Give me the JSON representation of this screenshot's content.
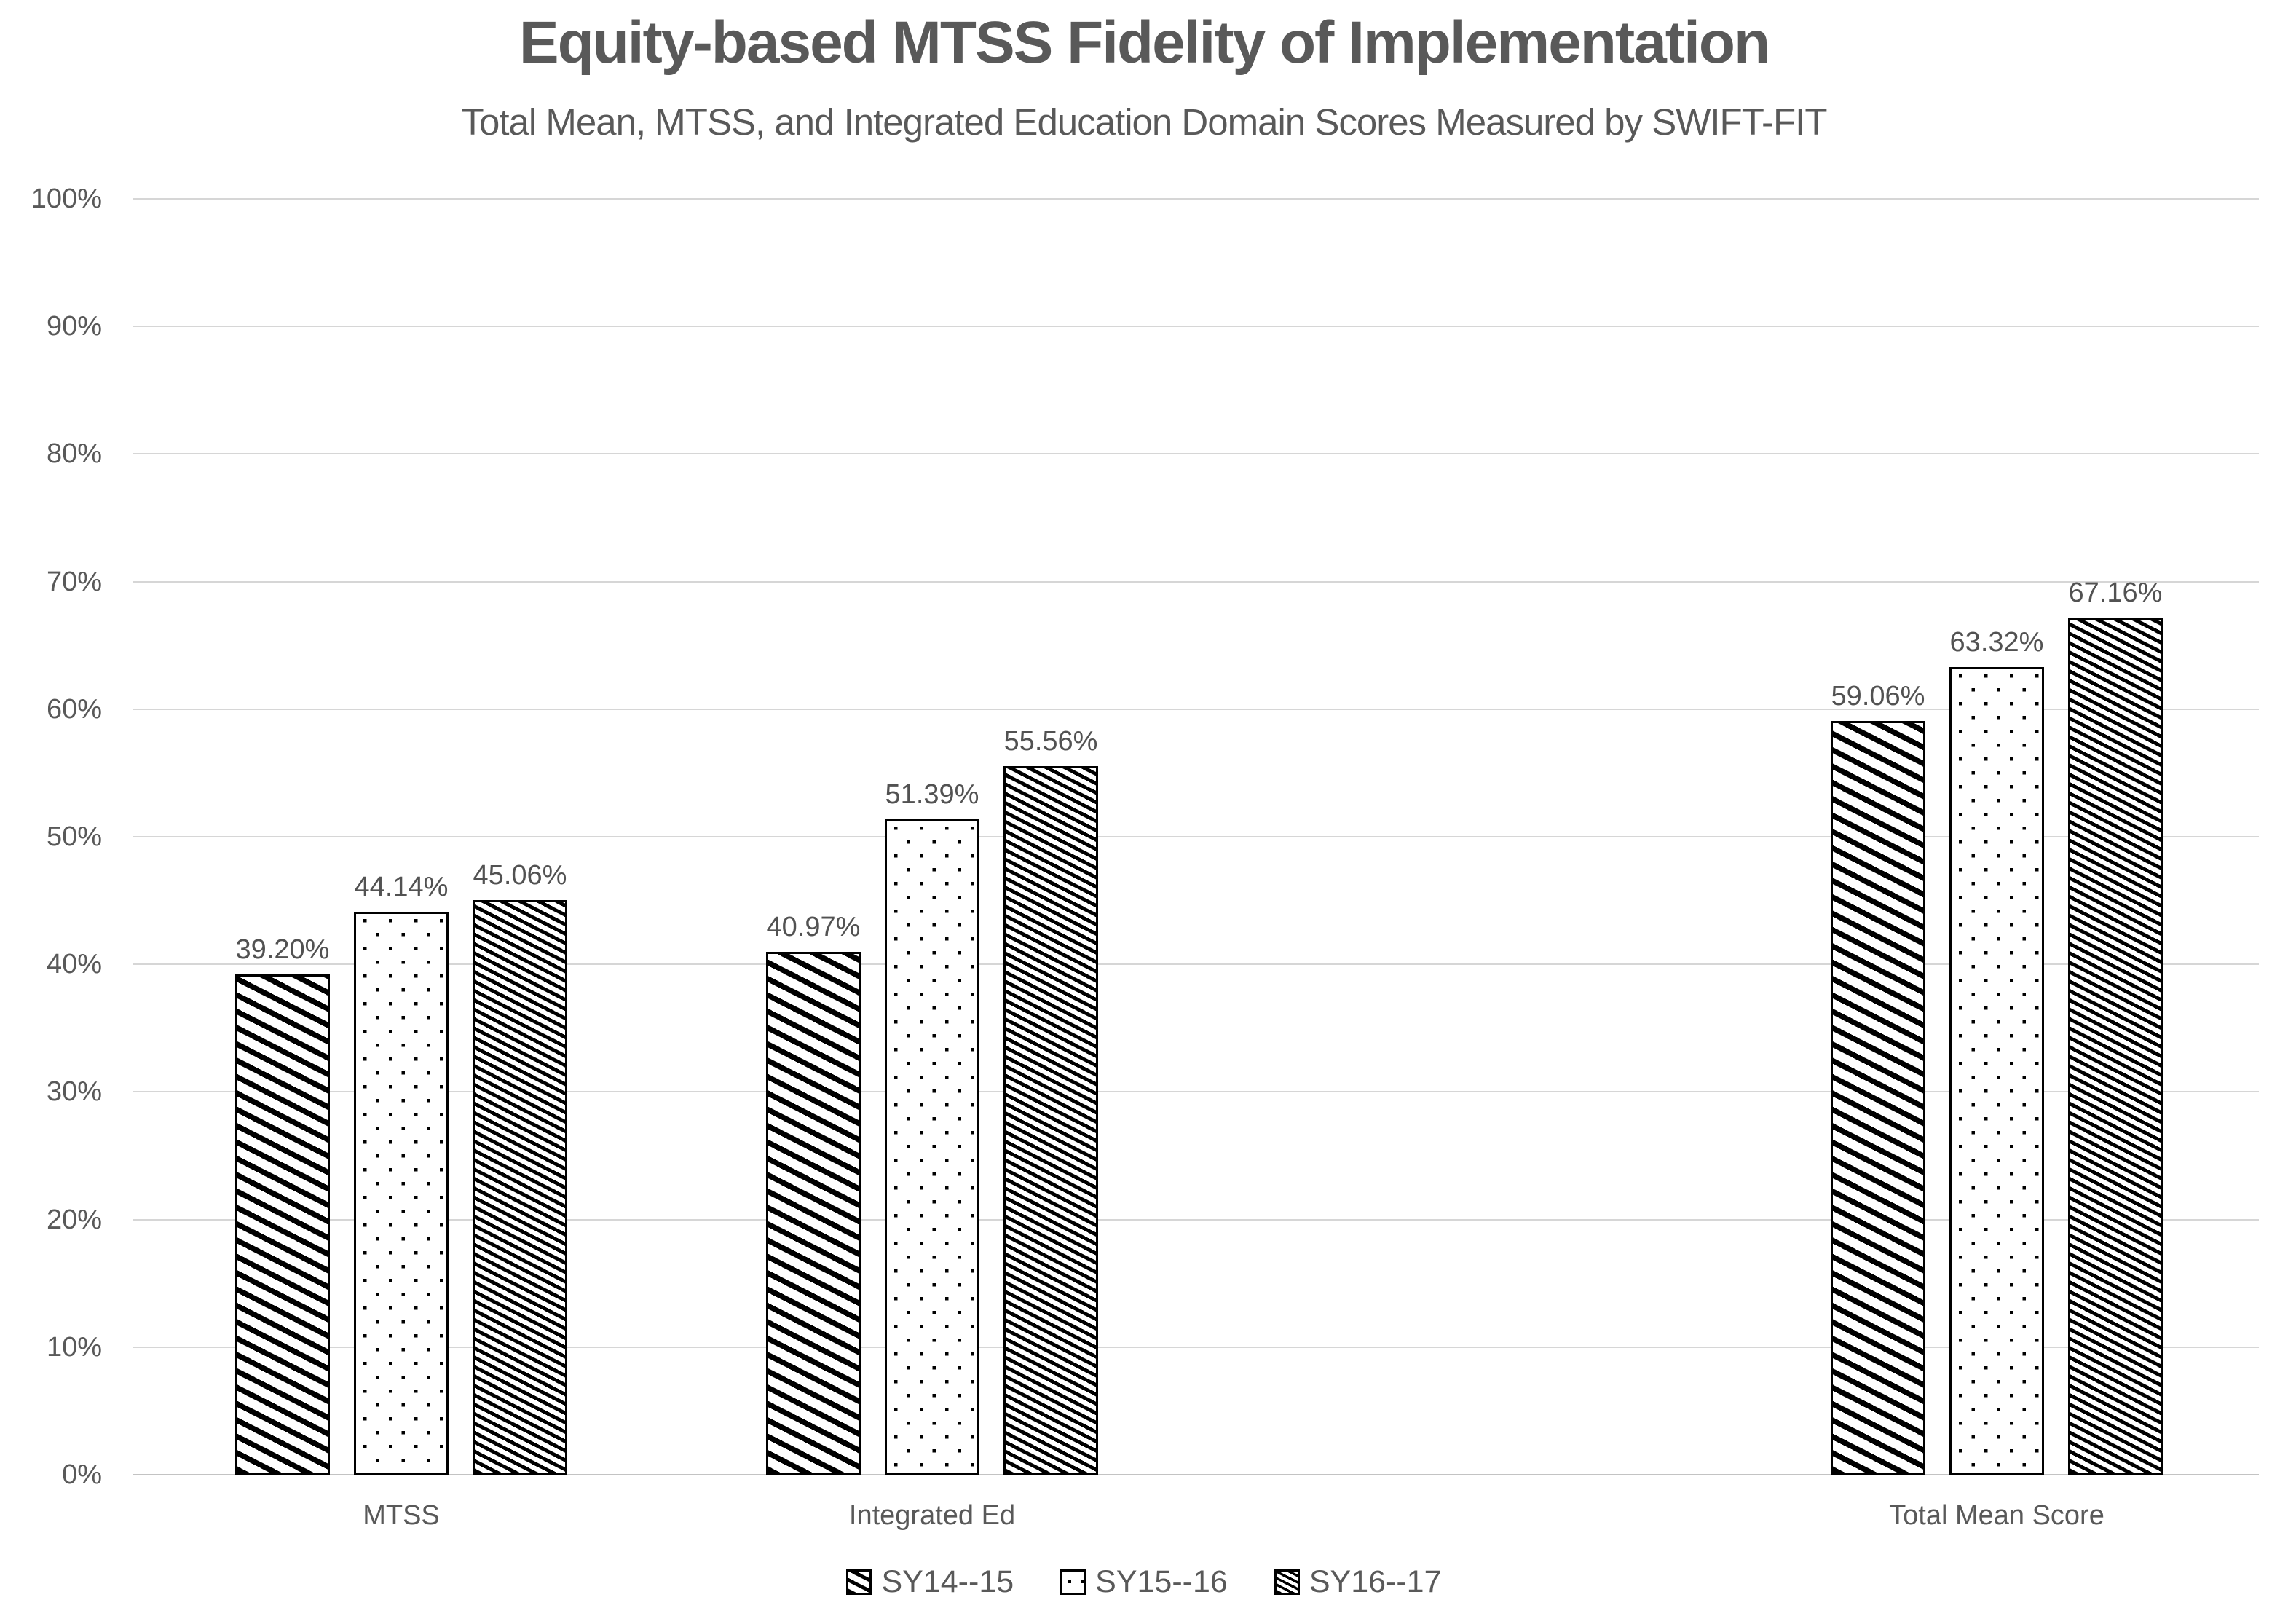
{
  "chart_data": {
    "type": "bar",
    "title": "Equity-based MTSS Fidelity of Implementation",
    "subtitle": "Total Mean, MTSS, and Integrated Education Domain Scores Measured by SWIFT-FIT",
    "categories": [
      "MTSS",
      "Integrated Ed",
      "Total Mean Score"
    ],
    "series": [
      {
        "name": "SY14--15",
        "pattern": "diagonal-wide",
        "values": [
          39.2,
          40.97,
          59.06
        ],
        "data_labels": [
          "39.20%",
          "40.97%",
          "59.06%"
        ]
      },
      {
        "name": "SY15--16",
        "pattern": "dots",
        "values": [
          44.14,
          51.39,
          63.32
        ],
        "data_labels": [
          "44.14%",
          "51.39%",
          "63.32%"
        ]
      },
      {
        "name": "SY16--17",
        "pattern": "diagonal-fine",
        "values": [
          45.06,
          55.56,
          67.16
        ],
        "data_labels": [
          "45.06%",
          "55.56%",
          "67.16%"
        ]
      }
    ],
    "y_axis": {
      "min": 0,
      "max": 100,
      "step": 10,
      "tick_labels": [
        "0%",
        "10%",
        "20%",
        "30%",
        "40%",
        "50%",
        "60%",
        "70%",
        "80%",
        "90%",
        "100%"
      ]
    },
    "grid": true,
    "legend_position": "bottom",
    "colors": {
      "pattern_foreground": "#000000",
      "bar_background": "#ffffff",
      "text": "#595959",
      "gridline": "#d6d6d6"
    }
  }
}
